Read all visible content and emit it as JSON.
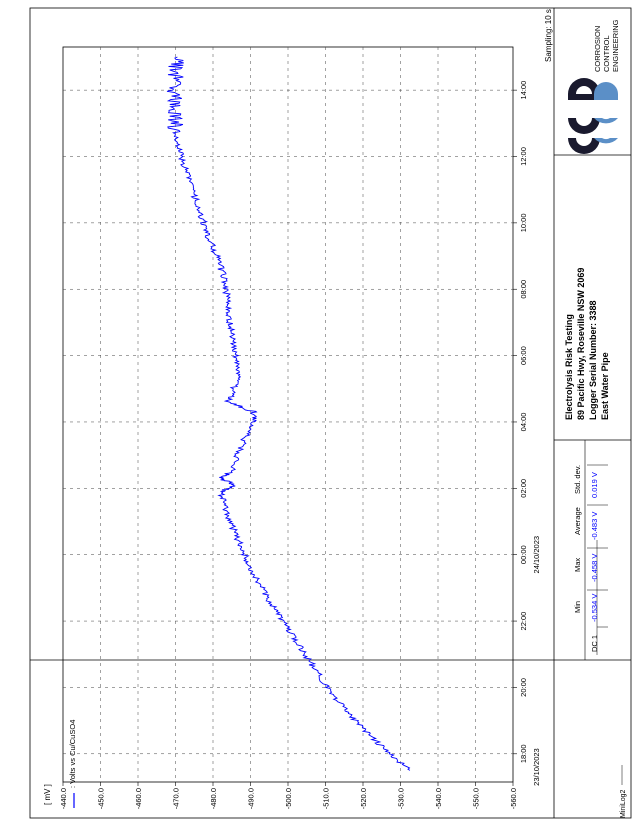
{
  "chart_data": {
    "type": "line",
    "ylabel": "[ mV ]",
    "ylim": [
      -560,
      -440
    ],
    "y_ticks": [
      "-440.0",
      "-450.0",
      "-460.0",
      "-470.0",
      "-480.0",
      "-490.0",
      "-500.0",
      "-510.0",
      "-520.0",
      "-530.0",
      "-540.0",
      "-550.0",
      "-560.0"
    ],
    "x_ticks": [
      "18:00",
      "20:00",
      "22:00",
      "00:00",
      "02:00",
      "04:00",
      "06:00",
      "08:00",
      "10:00",
      "12:00",
      "14:00"
    ],
    "x_hours_ticks": [
      18,
      20,
      22,
      24,
      26,
      28,
      30,
      32,
      34,
      36,
      38
    ],
    "xlim_hours": [
      17.15,
      39.3
    ],
    "date_labels": [
      {
        "text": "23/10/2023",
        "hour": 17.6
      },
      {
        "text": "24/10/2023",
        "hour": 24.0
      }
    ],
    "grid": true,
    "sampling": "Sampling: 10 s",
    "series": [
      {
        "name": ": Volts vs Cu/CuSO4",
        "color": "#0000ff",
        "points": [
          [
            17.5,
            -532.5
          ],
          [
            18.0,
            -527.0
          ],
          [
            18.5,
            -522.5
          ],
          [
            19.0,
            -518.0
          ],
          [
            19.5,
            -514.0
          ],
          [
            20.0,
            -510.5
          ],
          [
            20.5,
            -507.5
          ],
          [
            21.0,
            -504.5
          ],
          [
            21.5,
            -501.5
          ],
          [
            22.0,
            -498.5
          ],
          [
            22.5,
            -495.5
          ],
          [
            23.0,
            -493.0
          ],
          [
            23.5,
            -490.5
          ],
          [
            24.0,
            -488.5
          ],
          [
            24.5,
            -486.5
          ],
          [
            25.0,
            -484.5
          ],
          [
            25.5,
            -483.0
          ],
          [
            25.9,
            -482.0
          ],
          [
            26.1,
            -486.0
          ],
          [
            26.3,
            -482.0
          ],
          [
            26.5,
            -485.0
          ],
          [
            27.0,
            -486.5
          ],
          [
            27.5,
            -488.5
          ],
          [
            28.0,
            -490.5
          ],
          [
            28.3,
            -491.0
          ],
          [
            28.6,
            -484.0
          ],
          [
            29.0,
            -485.5
          ],
          [
            29.5,
            -487.0
          ],
          [
            30.0,
            -486.0
          ],
          [
            30.5,
            -485.0
          ],
          [
            31.0,
            -484.5
          ],
          [
            31.5,
            -484.0
          ],
          [
            32.0,
            -483.5
          ],
          [
            32.5,
            -482.5
          ],
          [
            33.0,
            -481.0
          ],
          [
            33.5,
            -479.0
          ],
          [
            34.0,
            -477.5
          ],
          [
            34.5,
            -476.0
          ],
          [
            35.0,
            -474.5
          ],
          [
            35.5,
            -473.0
          ],
          [
            36.0,
            -471.5
          ],
          [
            36.5,
            -470.5
          ],
          [
            37.0,
            -470.0
          ],
          [
            37.5,
            -469.5
          ],
          [
            38.0,
            -469.5
          ],
          [
            38.5,
            -470.0
          ],
          [
            39.0,
            -470.5
          ]
        ]
      }
    ]
  },
  "legend": {
    "series_label": ": Volts vs Cu/CuSO4",
    "color": "#0000ff"
  },
  "footer": {
    "left_label": "MiniLog2"
  },
  "stats": {
    "headers": [
      "Min",
      "Max",
      "Average",
      "Std. dev."
    ],
    "row_label": "DC 1",
    "values": [
      "-0.534 V",
      "-0.458 V",
      "-0.483 V",
      "0.019 V"
    ]
  },
  "info": {
    "lines": [
      "Electrolysis Risk Testing",
      "89 Pacific Hwy, Roseville NSW 2069",
      "Logger Serial Number: 3388",
      "East Water Pipe"
    ]
  },
  "logo": {
    "text": [
      "CORROSION",
      "CONTROL",
      "ENGINEERING"
    ],
    "dark_color": "#1a1a2e",
    "light_color": "#5b8fc7"
  }
}
